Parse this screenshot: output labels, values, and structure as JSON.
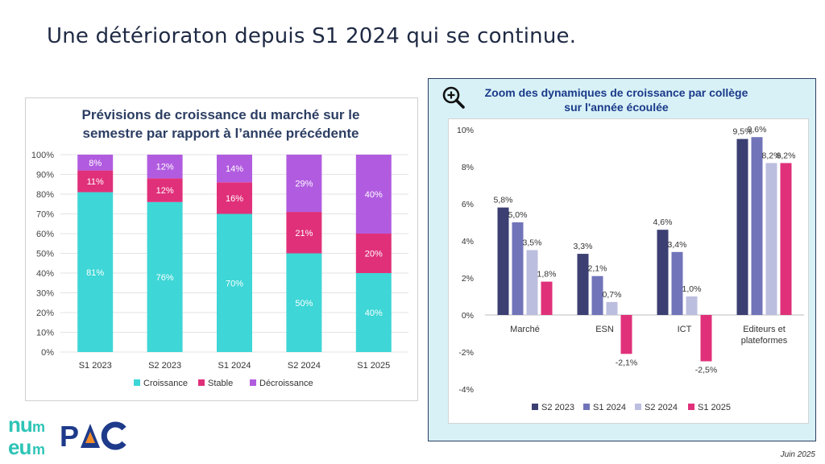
{
  "slide": {
    "headline": "Une détérioraton depuis S1 2024 qui se continue.",
    "footer_date": "Juin 2025"
  },
  "chart_data": [
    {
      "type": "bar",
      "stacked": true,
      "title": "Prévisions de croissance du marché sur le semestre par rapport à l’année précédente",
      "title_line1": "Prévisions de croissance du marché sur le",
      "title_line2": "semestre par rapport à l’année précédente",
      "categories": [
        "S1 2023",
        "S2 2023",
        "S1 2024",
        "S2 2024",
        "S1 2025"
      ],
      "series": [
        {
          "name": "Croissance",
          "color": "#3ed6d6",
          "values": [
            81,
            76,
            70,
            50,
            40
          ]
        },
        {
          "name": "Stable",
          "color": "#e0307a",
          "values": [
            11,
            12,
            16,
            21,
            20
          ]
        },
        {
          "name": "Décroissance",
          "color": "#b15ce0",
          "values": [
            8,
            12,
            14,
            29,
            40
          ]
        }
      ],
      "ylim": [
        0,
        100
      ],
      "yticks": [
        "0%",
        "10%",
        "20%",
        "30%",
        "40%",
        "50%",
        "60%",
        "70%",
        "80%",
        "90%",
        "100%"
      ],
      "grid": true,
      "legend": "bottom"
    },
    {
      "type": "bar",
      "title": "Zoom des dynamiques de croissance par collège sur l'année écoulée",
      "title_line1": "Zoom des dynamiques de croissance par collège",
      "title_line2": "sur l'année écoulée",
      "categories": [
        "Marché",
        "ESN",
        "ICT",
        "Editeurs et plateformes"
      ],
      "category_lines": [
        [
          "Marché"
        ],
        [
          "ESN"
        ],
        [
          "ICT"
        ],
        [
          "Editeurs et",
          "plateformes"
        ]
      ],
      "series": [
        {
          "name": "S2 2023",
          "color": "#3b3f72",
          "values": [
            5.8,
            3.3,
            4.6,
            9.5
          ],
          "labels": [
            "5,8%",
            "3,3%",
            "4,6%",
            "9,5%"
          ]
        },
        {
          "name": "S1 2024",
          "color": "#7174b8",
          "values": [
            5.0,
            2.1,
            3.4,
            9.6
          ],
          "labels": [
            "5,0%",
            "2,1%",
            "3,4%",
            "9,6%"
          ]
        },
        {
          "name": "S2 2024",
          "color": "#bcbedf",
          "values": [
            3.5,
            0.7,
            1.0,
            8.2
          ],
          "labels": [
            "3,5%",
            "0,7%",
            "1,0%",
            "8,2%"
          ]
        },
        {
          "name": "S1 2025",
          "color": "#e0307a",
          "values": [
            1.8,
            -2.1,
            -2.5,
            8.2
          ],
          "labels": [
            "1,8%",
            "-2,1%",
            "-2,5%",
            "8,2%"
          ]
        }
      ],
      "ylim": [
        -4,
        10
      ],
      "yticks": [
        "-4%",
        "-2%",
        "0%",
        "2%",
        "4%",
        "6%",
        "8%",
        "10%"
      ],
      "grid": false,
      "legend": "bottom"
    }
  ],
  "icons": {
    "zoom": "zoom-in-icon"
  },
  "logos": {
    "numeum": "numeum",
    "pac": "PAC"
  },
  "colors": {
    "accent_teal": "#3ed6d6",
    "accent_pink": "#e0307a",
    "navy": "#2c3e63"
  }
}
